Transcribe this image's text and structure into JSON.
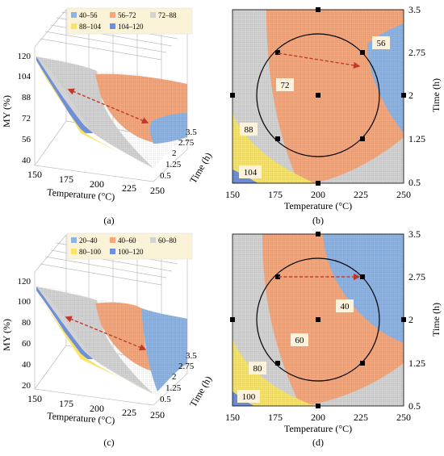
{
  "figure": {
    "panels": [
      "(a)",
      "(b)",
      "(c)",
      "(d)"
    ]
  },
  "colors": {
    "blue": "#8eb4e3",
    "orange": "#f4a77c",
    "grey": "#d3d3d3",
    "yellow": "#f8e46a",
    "dark_blue": "#6f8fd8",
    "design_point": "#000000",
    "arrow": "#c0392b"
  },
  "chart_data": [
    {
      "panel": "(a)",
      "type": "surface",
      "xlabel": "Temperature (°C)",
      "ylabel": "Time (h)",
      "zlabel": "MY (%)",
      "x_ticks": [
        "150",
        "175",
        "200",
        "225",
        "250"
      ],
      "y_ticks": [
        "0.5",
        "1.25",
        "2",
        "2.75",
        "3.5"
      ],
      "z_ticks": [
        "40",
        "56",
        "72",
        "88",
        "104",
        "120"
      ],
      "zlim": [
        40,
        120
      ],
      "legend": [
        {
          "label": "40–56",
          "color": "blue"
        },
        {
          "label": "56–72",
          "color": "orange"
        },
        {
          "label": "72–88",
          "color": "grey"
        },
        {
          "label": "88–104",
          "color": "yellow"
        },
        {
          "label": "104–120",
          "color": "dark_blue"
        }
      ]
    },
    {
      "panel": "(b)",
      "type": "contour",
      "xlabel": "Temperature (°C)",
      "ylabel": "Time (h)",
      "x_ticks": [
        "150",
        "175",
        "200",
        "225",
        "250"
      ],
      "y_ticks": [
        "0.5",
        "1.25",
        "2",
        "2.75",
        "3.5"
      ],
      "xlim": [
        150,
        250
      ],
      "ylim": [
        0.5,
        3.5
      ],
      "contour_labels": [
        "56",
        "72",
        "88",
        "104"
      ],
      "design_points": [
        [
          175,
          1.25
        ],
        [
          225,
          1.25
        ],
        [
          175,
          2.75
        ],
        [
          225,
          2.75
        ],
        [
          200,
          2
        ],
        [
          150,
          2
        ],
        [
          250,
          2
        ],
        [
          200,
          0.5
        ],
        [
          200,
          3.5
        ]
      ],
      "arrow": {
        "from": [
          175,
          2.75
        ],
        "to": [
          225,
          2.5
        ]
      }
    },
    {
      "panel": "(c)",
      "type": "surface",
      "xlabel": "Temperature (°C)",
      "ylabel": "Time (h)",
      "zlabel": "MY (%)",
      "x_ticks": [
        "150",
        "175",
        "200",
        "225",
        "250"
      ],
      "y_ticks": [
        "0.5",
        "1.25",
        "2",
        "2.75",
        "3.5"
      ],
      "z_ticks": [
        "20",
        "40",
        "60",
        "80",
        "100",
        "120"
      ],
      "zlim": [
        20,
        120
      ],
      "legend": [
        {
          "label": "20–40",
          "color": "blue"
        },
        {
          "label": "40–60",
          "color": "orange"
        },
        {
          "label": "60–80",
          "color": "grey"
        },
        {
          "label": "80–100",
          "color": "yellow"
        },
        {
          "label": "100–120",
          "color": "dark_blue"
        }
      ]
    },
    {
      "panel": "(d)",
      "type": "contour",
      "xlabel": "Temperature (°C)",
      "ylabel": "Time (h)",
      "x_ticks": [
        "150",
        "175",
        "200",
        "225",
        "250"
      ],
      "y_ticks": [
        "0.5",
        "1.25",
        "2",
        "2.75",
        "3.5"
      ],
      "xlim": [
        150,
        250
      ],
      "ylim": [
        0.5,
        3.5
      ],
      "contour_labels": [
        "40",
        "60",
        "80",
        "100"
      ],
      "design_points": [
        [
          175,
          1.25
        ],
        [
          225,
          1.25
        ],
        [
          175,
          2.75
        ],
        [
          225,
          2.75
        ],
        [
          200,
          2
        ],
        [
          150,
          2
        ],
        [
          250,
          2
        ],
        [
          200,
          0.5
        ],
        [
          200,
          3.5
        ]
      ],
      "arrow": {
        "from": [
          175,
          2.75
        ],
        "to": [
          225,
          2.75
        ]
      }
    }
  ]
}
